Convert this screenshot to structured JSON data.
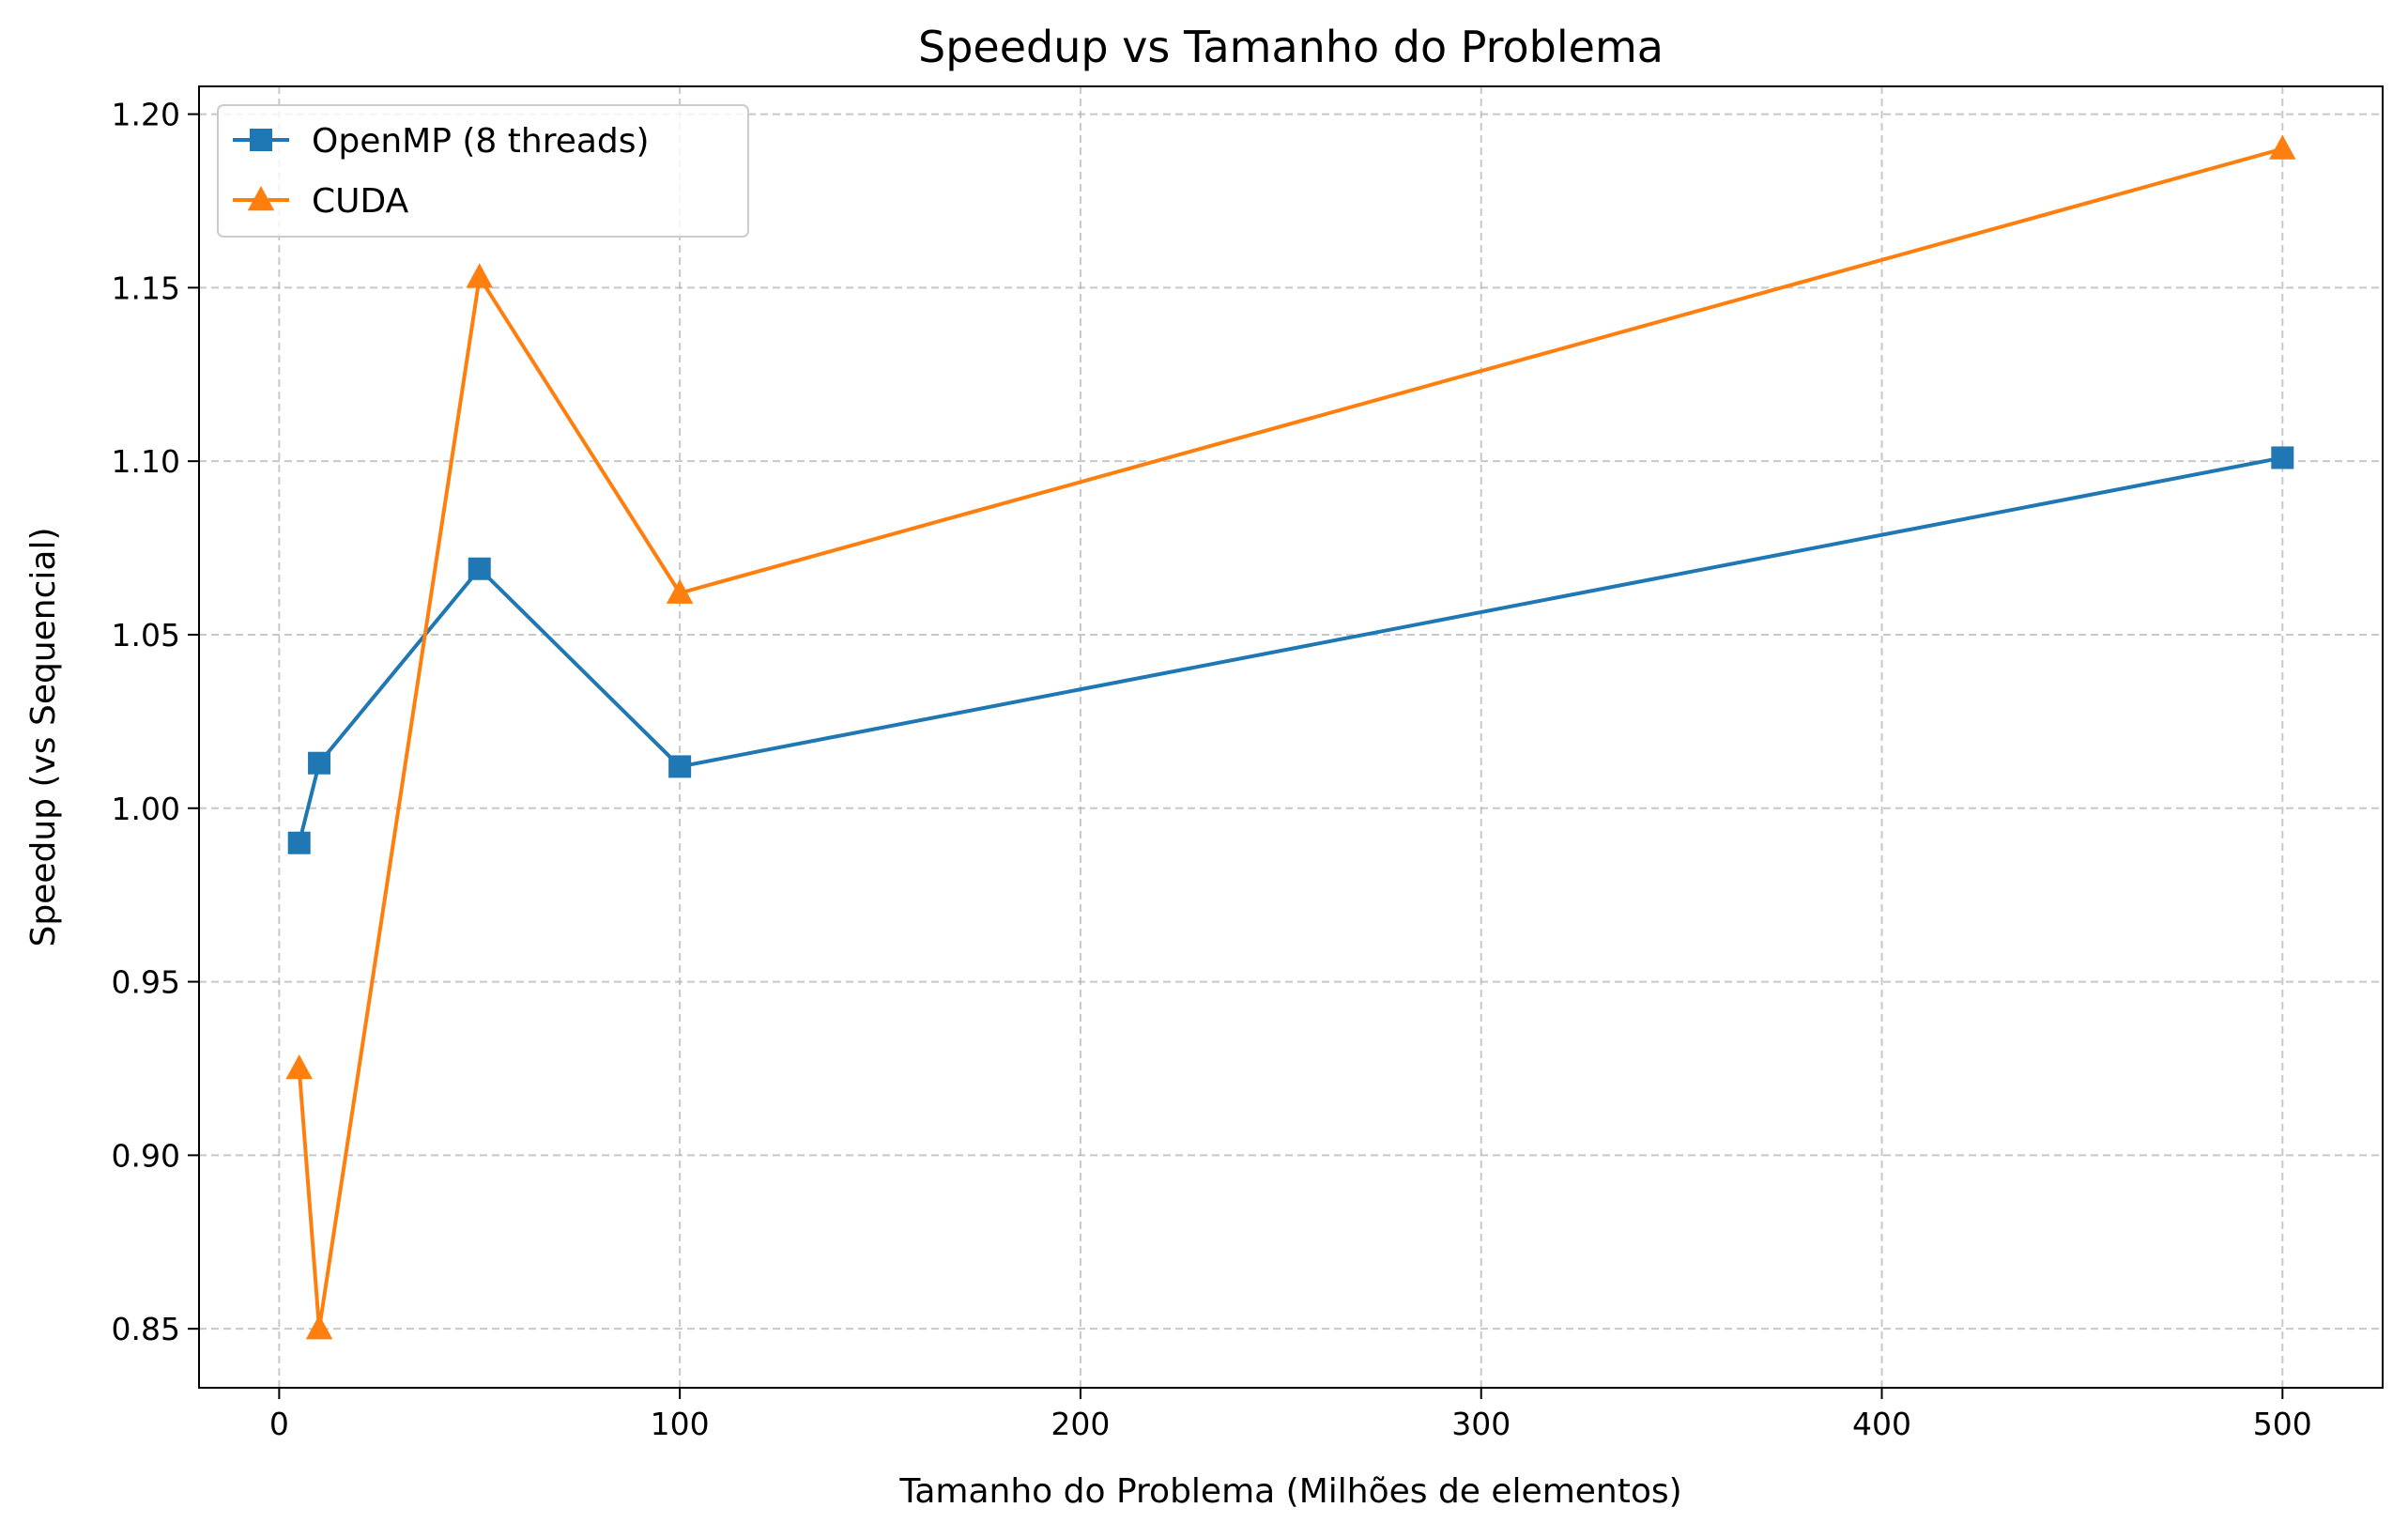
{
  "chart_data": {
    "type": "line",
    "title": "Speedup vs Tamanho do Problema",
    "xlabel": "Tamanho do Problema (Milhões de elementos)",
    "ylabel": "Speedup (vs Sequencial)",
    "xlim": [
      -20,
      525
    ],
    "ylim": [
      0.833,
      1.208
    ],
    "xticks": [
      0,
      100,
      200,
      300,
      400,
      500
    ],
    "yticks": [
      0.85,
      0.9,
      0.95,
      1.0,
      1.05,
      1.1,
      1.15,
      1.2
    ],
    "xtick_labels": [
      "0",
      "100",
      "200",
      "300",
      "400",
      "500"
    ],
    "ytick_labels": [
      "0.85",
      "0.90",
      "0.95",
      "1.00",
      "1.05",
      "1.10",
      "1.15",
      "1.20"
    ],
    "grid": true,
    "legend_position": "top-left",
    "series": [
      {
        "name": "OpenMP (8 threads)",
        "color": "#1f77b4",
        "marker": "square",
        "x": [
          5,
          10,
          50,
          100,
          500
        ],
        "y": [
          0.99,
          1.013,
          1.069,
          1.012,
          1.101
        ]
      },
      {
        "name": "CUDA",
        "color": "#ff7f0e",
        "marker": "triangle",
        "x": [
          5,
          10,
          50,
          100,
          500
        ],
        "y": [
          0.925,
          0.85,
          1.153,
          1.062,
          1.19
        ]
      }
    ]
  }
}
